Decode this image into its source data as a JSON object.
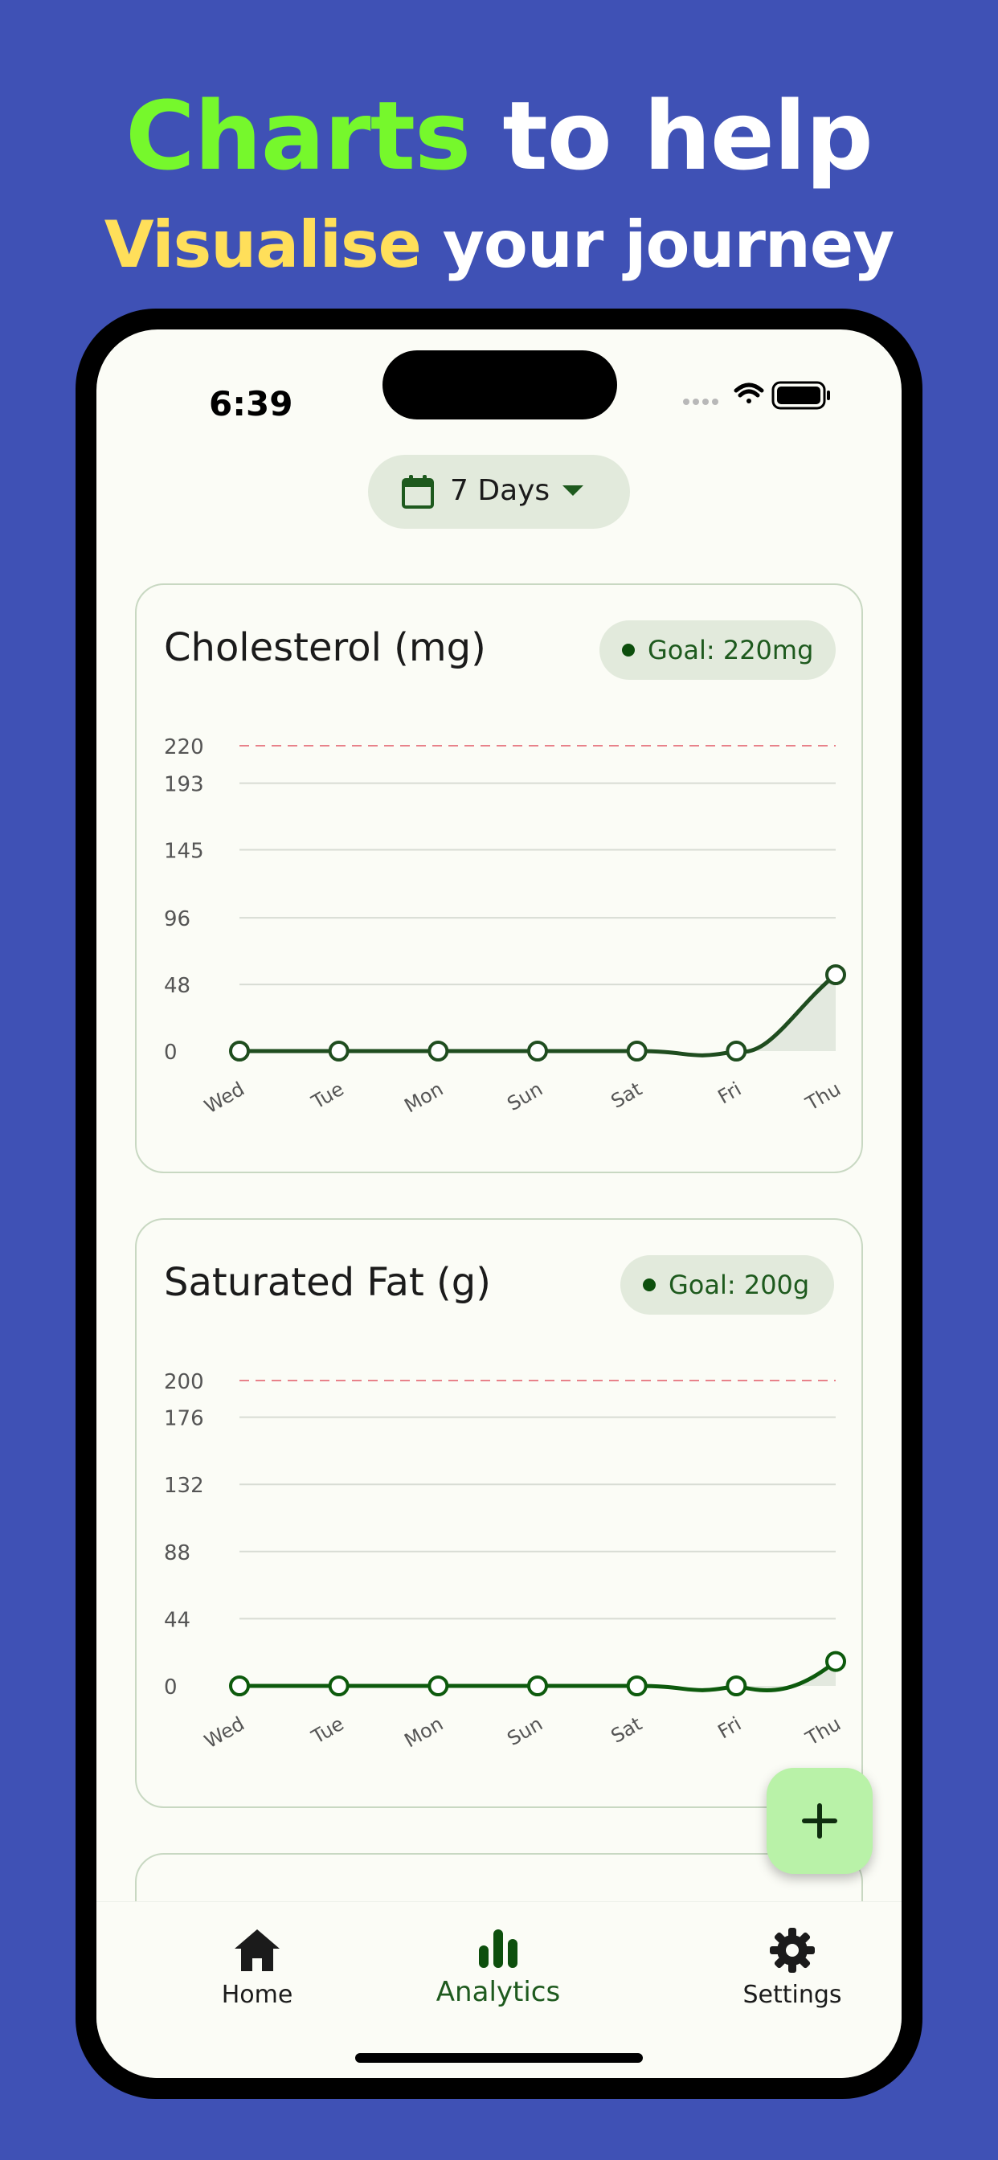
{
  "headline": {
    "line1_accent": "Charts",
    "line1_rest": " to help",
    "line2_accent": "Visualise",
    "line2_rest": " your journey"
  },
  "status_bar": {
    "time": "6:39"
  },
  "range_selector": {
    "label": "7 Days",
    "icon": "calendar-icon"
  },
  "cards": [
    {
      "title": "Cholesterol (mg)",
      "goal_label": "Goal: 220mg"
    },
    {
      "title": "Saturated Fat (g)",
      "goal_label": "Goal: 200g"
    }
  ],
  "chart_data": [
    {
      "type": "line",
      "title": "Cholesterol (mg)",
      "categories": [
        "Wed",
        "Tue",
        "Mon",
        "Sun",
        "Sat",
        "Fri",
        "Thu"
      ],
      "values": [
        0,
        0,
        0,
        0,
        0,
        0,
        55
      ],
      "y_ticks": [
        0,
        48,
        96,
        145,
        193
      ],
      "goal": 220,
      "ylim": [
        0,
        220
      ],
      "colors": {
        "line": "#1f4d1f",
        "goal": "#e8828a",
        "fill": "#e3e9df",
        "grid": "#d8dcd4"
      }
    },
    {
      "type": "line",
      "title": "Saturated Fat (g)",
      "categories": [
        "Wed",
        "Tue",
        "Mon",
        "Sun",
        "Sat",
        "Fri",
        "Thu"
      ],
      "values": [
        0,
        0,
        0,
        0,
        0,
        0,
        16
      ],
      "y_ticks": [
        0,
        44,
        88,
        132,
        176
      ],
      "goal": 200,
      "ylim": [
        0,
        200
      ],
      "colors": {
        "line": "#0d5a0d",
        "goal": "#e8828a",
        "fill": "#e3e9df",
        "grid": "#d8dcd4"
      }
    }
  ],
  "fab": {
    "icon": "plus-icon"
  },
  "nav": [
    {
      "label": "Home",
      "icon": "home-icon"
    },
    {
      "label": "Analytics",
      "icon": "bar-chart-icon"
    },
    {
      "label": "Settings",
      "icon": "gear-icon"
    }
  ],
  "colors": {
    "background": "#3f51b5",
    "accent_green": "#76f82c",
    "accent_yellow": "#ffdf5a",
    "primary": "#1e5a1e"
  }
}
